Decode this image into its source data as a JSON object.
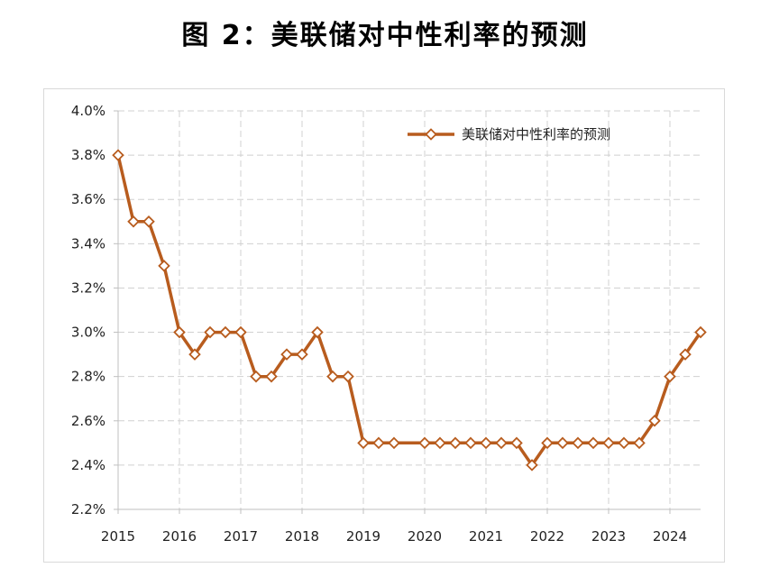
{
  "title": "图 2：美联储对中性利率的预测",
  "chart_data": {
    "type": "line",
    "series": [
      {
        "name": "美联储对中性利率的预测",
        "color": "#b85c1e",
        "marker": "diamond",
        "x": [
          2015.0,
          2015.25,
          2015.5,
          2015.75,
          2016.0,
          2016.25,
          2016.5,
          2016.75,
          2017.0,
          2017.25,
          2017.5,
          2017.75,
          2018.0,
          2018.25,
          2018.5,
          2018.75,
          2019.0,
          2019.25,
          2019.5,
          2020.0,
          2020.25,
          2020.5,
          2020.75,
          2021.0,
          2021.25,
          2021.5,
          2021.75,
          2022.0,
          2022.25,
          2022.5,
          2022.75,
          2023.0,
          2023.25,
          2023.5,
          2023.75,
          2024.0,
          2024.25,
          2024.5
        ],
        "values": [
          3.8,
          3.5,
          3.5,
          3.3,
          3.0,
          2.9,
          3.0,
          3.0,
          3.0,
          2.8,
          2.8,
          2.9,
          2.9,
          3.0,
          2.8,
          2.8,
          2.5,
          2.5,
          2.5,
          2.5,
          2.5,
          2.5,
          2.5,
          2.5,
          2.5,
          2.5,
          2.4,
          2.5,
          2.5,
          2.5,
          2.5,
          2.5,
          2.5,
          2.5,
          2.6,
          2.8,
          2.9,
          3.0
        ]
      }
    ],
    "x_ticks": [
      "2015",
      "2016",
      "2017",
      "2018",
      "2019",
      "2020",
      "2021",
      "2022",
      "2023",
      "2024"
    ],
    "y_ticks": [
      "2.2%",
      "2.4%",
      "2.6%",
      "2.8%",
      "3.0%",
      "3.2%",
      "3.4%",
      "3.6%",
      "3.8%",
      "4.0%"
    ],
    "ylim": [
      2.2,
      4.0
    ],
    "xlim": [
      2015.0,
      2024.5
    ],
    "grid": true,
    "legend_position": "top-right"
  }
}
